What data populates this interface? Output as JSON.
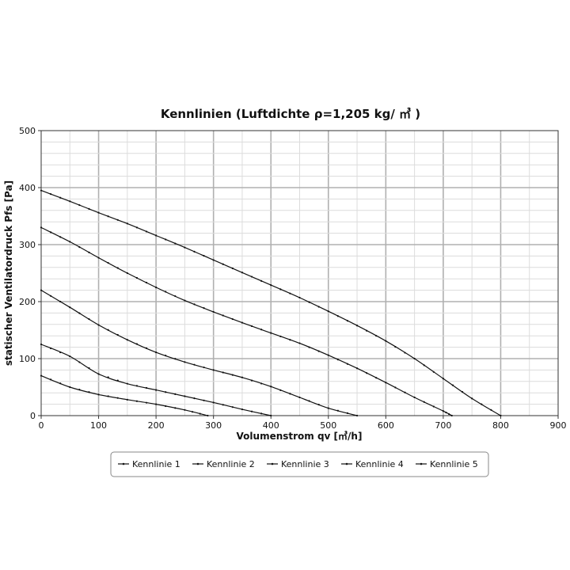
{
  "chart_data": {
    "type": "line",
    "title": "Kennlinien (Luftdichte ρ=1,205 kg/ ㎥ )",
    "xlabel": "Volumenstrom qv [㎥/h]",
    "ylabel": "statischer Ventilatordruck Pfs [Pa]",
    "xlim": [
      0,
      900
    ],
    "ylim": [
      0,
      500
    ],
    "x_ticks": [
      "0",
      "100",
      "200",
      "300",
      "400",
      "500",
      "600",
      "700",
      "800",
      "900"
    ],
    "y_ticks": [
      "0",
      "100",
      "200",
      "300",
      "400",
      "500"
    ],
    "grid": true,
    "legend_position": "bottom",
    "line_color": "#111111",
    "series": [
      {
        "name": "Kennlinie 1",
        "points": [
          [
            0,
            395
          ],
          [
            50,
            376
          ],
          [
            100,
            356
          ],
          [
            150,
            337
          ],
          [
            200,
            316
          ],
          [
            250,
            295
          ],
          [
            300,
            273
          ],
          [
            350,
            251
          ],
          [
            400,
            229
          ],
          [
            450,
            207
          ],
          [
            500,
            183
          ],
          [
            550,
            158
          ],
          [
            600,
            131
          ],
          [
            650,
            100
          ],
          [
            700,
            65
          ],
          [
            750,
            30
          ],
          [
            800,
            0
          ]
        ]
      },
      {
        "name": "Kennlinie 2",
        "points": [
          [
            0,
            330
          ],
          [
            50,
            305
          ],
          [
            100,
            277
          ],
          [
            150,
            250
          ],
          [
            200,
            225
          ],
          [
            250,
            202
          ],
          [
            300,
            182
          ],
          [
            350,
            163
          ],
          [
            400,
            145
          ],
          [
            450,
            127
          ],
          [
            500,
            106
          ],
          [
            550,
            83
          ],
          [
            600,
            58
          ],
          [
            650,
            32
          ],
          [
            700,
            8
          ],
          [
            715,
            0
          ]
        ]
      },
      {
        "name": "Kennlinie 3",
        "points": [
          [
            0,
            220
          ],
          [
            50,
            190
          ],
          [
            100,
            159
          ],
          [
            150,
            133
          ],
          [
            200,
            111
          ],
          [
            250,
            94
          ],
          [
            300,
            80
          ],
          [
            350,
            67
          ],
          [
            400,
            51
          ],
          [
            450,
            32
          ],
          [
            500,
            13
          ],
          [
            550,
            0
          ]
        ]
      },
      {
        "name": "Kennlinie 4",
        "points": [
          [
            0,
            125
          ],
          [
            50,
            104
          ],
          [
            100,
            73
          ],
          [
            150,
            56
          ],
          [
            200,
            45
          ],
          [
            250,
            34
          ],
          [
            300,
            23
          ],
          [
            350,
            11
          ],
          [
            400,
            0
          ]
        ]
      },
      {
        "name": "Kennlinie 5",
        "points": [
          [
            0,
            70
          ],
          [
            50,
            50
          ],
          [
            100,
            37
          ],
          [
            150,
            28
          ],
          [
            200,
            20
          ],
          [
            250,
            10
          ],
          [
            290,
            0
          ]
        ]
      }
    ]
  }
}
